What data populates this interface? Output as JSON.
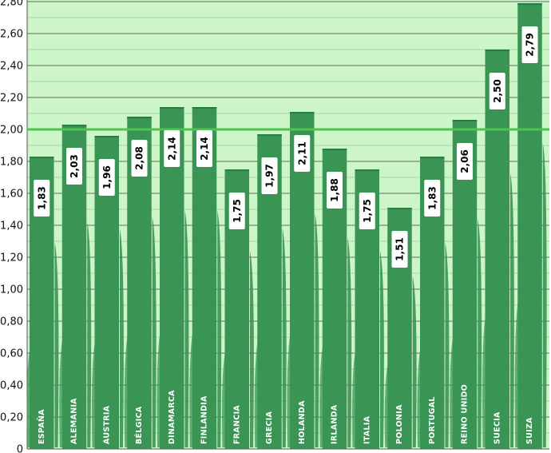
{
  "chart_data": {
    "type": "bar",
    "categories": [
      "ESPAÑA",
      "ALEMANIA",
      "AUSTRIA",
      "BÉLGICA",
      "DINAMARCA",
      "FINLANDIA",
      "FRANCIA",
      "GRECIA",
      "HOLANDA",
      "IRLANDA",
      "ITALIA",
      "POLONIA",
      "PORTUGAL",
      "REINO UNIDO",
      "SUECIA",
      "SUIZA"
    ],
    "values": [
      1.83,
      2.03,
      1.96,
      2.08,
      2.14,
      2.14,
      1.75,
      1.97,
      2.11,
      1.88,
      1.75,
      1.51,
      1.83,
      2.06,
      2.5,
      2.79
    ],
    "value_labels": [
      "1,83",
      "2,03",
      "1,96",
      "2,08",
      "2,14",
      "2,14",
      "1,75",
      "1,97",
      "2,11",
      "1,88",
      "1,75",
      "1,51",
      "1,83",
      "2,06",
      "2,50",
      "2,79"
    ],
    "ylim": [
      0,
      2.8
    ],
    "y_ticks": [
      "0",
      "0,20",
      "0,40",
      "0,60",
      "0,80",
      "1,00",
      "1,20",
      "1,40",
      "1,60",
      "1,80",
      "2,00",
      "2,20",
      "2,40",
      "2,60",
      "2,80"
    ],
    "reference_line": 2.0,
    "grid": true,
    "colors": {
      "plot_background": "#ccf5c8",
      "bar": "#3a9555",
      "bar_dark": "#2a7a42",
      "reference_line": "#4fc34f",
      "gridline": "#6a6a6a"
    }
  }
}
